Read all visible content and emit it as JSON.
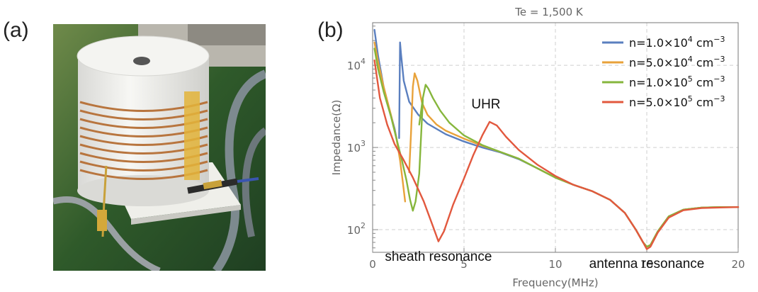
{
  "panels": {
    "a_label": "(a)",
    "b_label": "(b)"
  },
  "photo": {
    "description_icon": "coil-antenna-photo-icon"
  },
  "chart_data": {
    "type": "line",
    "title": "Te = 1,500 K",
    "xlabel": "Frequency(MHz)",
    "ylabel": "Impedance(Ω)",
    "xlim": [
      0,
      20
    ],
    "ylim": [
      53,
      33000
    ],
    "yscale": "log",
    "grid": true,
    "legend_position": "top-right",
    "x_ticks": [
      "0",
      "5",
      "10",
      "15",
      "20"
    ],
    "y_ticks": [
      {
        "base": "10",
        "exp": "2",
        "value": 100
      },
      {
        "base": "10",
        "exp": "3",
        "value": 1000
      },
      {
        "base": "10",
        "exp": "4",
        "value": 10000
      }
    ],
    "annotations": [
      {
        "text": "UHR",
        "x": 6.2,
        "y": 3000
      },
      {
        "text": "sheath resonance",
        "x": 3.6,
        "y": 70
      },
      {
        "text": "antenna resonance",
        "x": 15.0,
        "y": 55
      }
    ],
    "series": [
      {
        "name": "n=1.0×10⁴ cm⁻³",
        "legend": {
          "mant": "1.0",
          "exp": "4"
        },
        "color": "#5a7fbf",
        "segments": [
          [
            [
              0.1,
              27000
            ],
            [
              0.3,
              13000
            ],
            [
              0.6,
              5500
            ],
            [
              0.9,
              3000
            ],
            [
              1.2,
              1700
            ],
            [
              1.35,
              1150
            ]
          ],
          [
            [
              1.45,
              1300
            ],
            [
              1.5,
              19000
            ],
            [
              1.55,
              14000
            ],
            [
              1.7,
              6500
            ],
            [
              2.0,
              3600
            ],
            [
              2.5,
              2500
            ],
            [
              3.0,
              1950
            ],
            [
              4.0,
              1450
            ],
            [
              5.0,
              1180
            ],
            [
              6.0,
              1000
            ],
            [
              7.0,
              870
            ],
            [
              8.0,
              720
            ],
            [
              9.0,
              560
            ],
            [
              10.0,
              430
            ],
            [
              11.0,
              350
            ],
            [
              12.0,
              295
            ],
            [
              13.0,
              230
            ],
            [
              13.8,
              160
            ],
            [
              14.4,
              100
            ],
            [
              14.8,
              70
            ],
            [
              15.0,
              62
            ],
            [
              15.2,
              65
            ],
            [
              15.6,
              95
            ],
            [
              16.2,
              145
            ],
            [
              17.0,
              175
            ],
            [
              18.0,
              185
            ],
            [
              19.0,
              188
            ],
            [
              20.0,
              188
            ]
          ]
        ]
      },
      {
        "name": "n=5.0×10⁴ cm⁻³",
        "legend": {
          "mant": "5.0",
          "exp": "4"
        },
        "color": "#e8a23a",
        "segments": [
          [
            [
              0.1,
              19000
            ],
            [
              0.3,
              11000
            ],
            [
              0.6,
              5500
            ],
            [
              1.0,
              2500
            ],
            [
              1.3,
              1300
            ],
            [
              1.5,
              700
            ],
            [
              1.65,
              380
            ],
            [
              1.78,
              220
            ]
          ],
          [
            [
              2.0,
              500
            ],
            [
              2.1,
              1500
            ],
            [
              2.2,
              5500
            ],
            [
              2.3,
              8000
            ],
            [
              2.45,
              6500
            ],
            [
              2.7,
              3500
            ],
            [
              3.0,
              2500
            ],
            [
              3.5,
              1900
            ],
            [
              4.0,
              1600
            ],
            [
              5.0,
              1280
            ],
            [
              6.0,
              1050
            ],
            [
              7.0,
              880
            ],
            [
              8.0,
              730
            ],
            [
              9.0,
              560
            ],
            [
              10.0,
              430
            ],
            [
              11.0,
              350
            ],
            [
              12.0,
              295
            ],
            [
              13.0,
              230
            ],
            [
              13.8,
              160
            ],
            [
              14.4,
              100
            ],
            [
              14.8,
              70
            ],
            [
              15.0,
              62
            ],
            [
              15.2,
              65
            ],
            [
              15.6,
              95
            ],
            [
              16.2,
              145
            ],
            [
              17.0,
              175
            ],
            [
              18.0,
              185
            ],
            [
              19.0,
              188
            ],
            [
              20.0,
              188
            ]
          ]
        ]
      },
      {
        "name": "n=1.0×10⁵ cm⁻³",
        "legend": {
          "mant": "1.0",
          "exp": "5"
        },
        "color": "#86b63c",
        "segments": [
          [
            [
              0.1,
              16000
            ],
            [
              0.3,
              9000
            ],
            [
              0.6,
              4800
            ],
            [
              1.0,
              2400
            ],
            [
              1.3,
              1300
            ],
            [
              1.6,
              700
            ],
            [
              1.85,
              400
            ],
            [
              2.05,
              230
            ],
            [
              2.2,
              170
            ],
            [
              2.35,
              220
            ],
            [
              2.55,
              480
            ],
            [
              2.75,
              3800
            ]
          ],
          [
            [
              2.55,
              1900
            ],
            [
              2.75,
              4000
            ],
            [
              2.9,
              5800
            ],
            [
              3.05,
              5200
            ],
            [
              3.3,
              4000
            ],
            [
              3.7,
              2800
            ],
            [
              4.2,
              2000
            ],
            [
              5.0,
              1400
            ],
            [
              6.0,
              1070
            ],
            [
              7.0,
              880
            ],
            [
              8.0,
              730
            ],
            [
              9.0,
              560
            ],
            [
              10.0,
              430
            ],
            [
              11.0,
              350
            ],
            [
              12.0,
              295
            ],
            [
              13.0,
              230
            ],
            [
              13.8,
              160
            ],
            [
              14.4,
              100
            ],
            [
              14.8,
              70
            ],
            [
              15.0,
              62
            ],
            [
              15.2,
              65
            ],
            [
              15.6,
              95
            ],
            [
              16.2,
              145
            ],
            [
              17.0,
              175
            ],
            [
              18.0,
              185
            ],
            [
              19.0,
              188
            ],
            [
              20.0,
              188
            ]
          ]
        ]
      },
      {
        "name": "n=5.0×10⁵ cm⁻³",
        "legend": {
          "mant": "5.0",
          "exp": "5"
        },
        "color": "#e2583e",
        "segments": [
          [
            [
              0.1,
              11500
            ],
            [
              0.4,
              4000
            ],
            [
              0.8,
              1900
            ],
            [
              1.2,
              1100
            ],
            [
              1.7,
              700
            ],
            [
              2.2,
              430
            ],
            [
              2.8,
              220
            ],
            [
              3.3,
              110
            ],
            [
              3.6,
              72
            ],
            [
              3.9,
              95
            ],
            [
              4.4,
              200
            ],
            [
              5.0,
              420
            ],
            [
              5.5,
              800
            ],
            [
              6.0,
              1400
            ],
            [
              6.4,
              2050
            ],
            [
              6.8,
              1850
            ],
            [
              7.3,
              1350
            ],
            [
              8.0,
              930
            ],
            [
              9.0,
              620
            ],
            [
              10.0,
              450
            ],
            [
              11.0,
              350
            ],
            [
              12.0,
              295
            ],
            [
              13.0,
              230
            ],
            [
              13.8,
              160
            ],
            [
              14.4,
              100
            ],
            [
              14.8,
              70
            ],
            [
              15.0,
              58
            ],
            [
              15.2,
              62
            ],
            [
              15.6,
              92
            ],
            [
              16.2,
              140
            ],
            [
              17.0,
              172
            ],
            [
              18.0,
              183
            ],
            [
              19.0,
              186
            ],
            [
              20.0,
              188
            ]
          ]
        ]
      }
    ]
  }
}
